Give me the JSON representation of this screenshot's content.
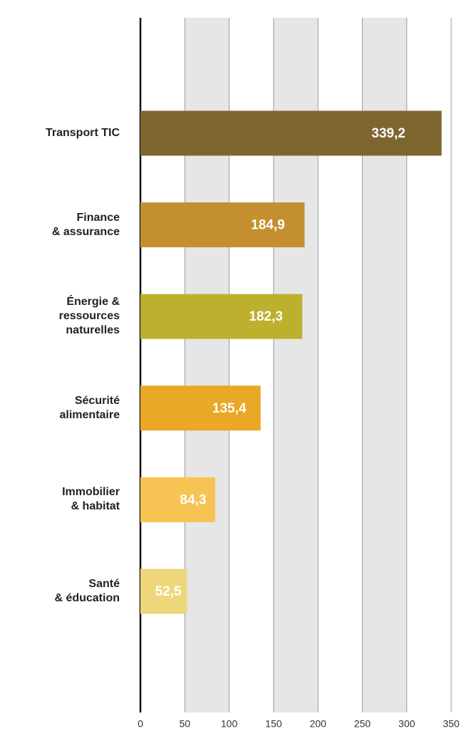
{
  "chart_data": {
    "type": "bar",
    "orientation": "horizontal",
    "categories": [
      "Transport TIC",
      "Finance\n& assurance",
      "Énergie &\nressources\nnaturelles",
      "Sécurité\nalimentaire",
      "Immobilier\n& habitat",
      "Santé\n& éducation"
    ],
    "values": [
      339.2,
      184.9,
      182.3,
      135.4,
      84.3,
      52.5
    ],
    "value_labels": [
      "339,2",
      "184,9",
      "182,3",
      "135,4",
      "84,3",
      "52,5"
    ],
    "colors": [
      "#7f6530",
      "#c4902f",
      "#bdb02e",
      "#e9a825",
      "#f7c352",
      "#eed77a"
    ],
    "xlim": [
      0,
      350
    ],
    "xticks": [
      0,
      50,
      100,
      150,
      200,
      250,
      300,
      350
    ],
    "grid": true
  }
}
